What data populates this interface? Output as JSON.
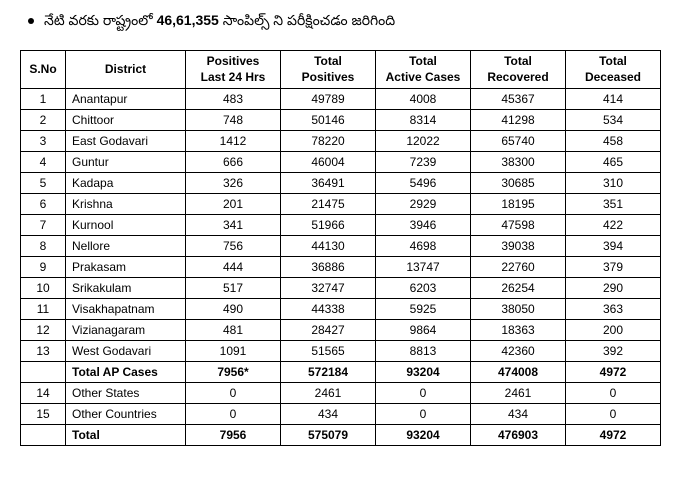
{
  "bullet": {
    "prefix": "నేటి వరకు రాష్ట్రంలో ",
    "value": "46,61,355",
    "suffix": "  సాంపిల్స్ ని పరీక్షించడం జరిగింది"
  },
  "columns": {
    "sno": "S.No",
    "district": "District",
    "pos24_l1": "Positives",
    "pos24_l2": "Last 24 Hrs",
    "totpos_l1": "Total",
    "totpos_l2": "Positives",
    "active_l1": "Total",
    "active_l2": "Active Cases",
    "rec_l1": "Total",
    "rec_l2": "Recovered",
    "dec_l1": "Total",
    "dec_l2": "Deceased"
  },
  "rows": [
    {
      "sno": "1",
      "district": "Anantapur",
      "p24": "483",
      "tp": "49789",
      "ac": "4008",
      "rc": "45367",
      "dc": "414"
    },
    {
      "sno": "2",
      "district": "Chittoor",
      "p24": "748",
      "tp": "50146",
      "ac": "8314",
      "rc": "41298",
      "dc": "534"
    },
    {
      "sno": "3",
      "district": "East Godavari",
      "p24": "1412",
      "tp": "78220",
      "ac": "12022",
      "rc": "65740",
      "dc": "458"
    },
    {
      "sno": "4",
      "district": "Guntur",
      "p24": "666",
      "tp": "46004",
      "ac": "7239",
      "rc": "38300",
      "dc": "465"
    },
    {
      "sno": "5",
      "district": "Kadapa",
      "p24": "326",
      "tp": "36491",
      "ac": "5496",
      "rc": "30685",
      "dc": "310"
    },
    {
      "sno": "6",
      "district": "Krishna",
      "p24": "201",
      "tp": "21475",
      "ac": "2929",
      "rc": "18195",
      "dc": "351"
    },
    {
      "sno": "7",
      "district": "Kurnool",
      "p24": "341",
      "tp": "51966",
      "ac": "3946",
      "rc": "47598",
      "dc": "422"
    },
    {
      "sno": "8",
      "district": "Nellore",
      "p24": "756",
      "tp": "44130",
      "ac": "4698",
      "rc": "39038",
      "dc": "394"
    },
    {
      "sno": "9",
      "district": "Prakasam",
      "p24": "444",
      "tp": "36886",
      "ac": "13747",
      "rc": "22760",
      "dc": "379"
    },
    {
      "sno": "10",
      "district": "Srikakulam",
      "p24": "517",
      "tp": "32747",
      "ac": "6203",
      "rc": "26254",
      "dc": "290"
    },
    {
      "sno": "11",
      "district": "Visakhapatnam",
      "p24": "490",
      "tp": "44338",
      "ac": "5925",
      "rc": "38050",
      "dc": "363"
    },
    {
      "sno": "12",
      "district": "Vizianagaram",
      "p24": "481",
      "tp": "28427",
      "ac": "9864",
      "rc": "18363",
      "dc": "200"
    },
    {
      "sno": "13",
      "district": "West Godavari",
      "p24": "1091",
      "tp": "51565",
      "ac": "8813",
      "rc": "42360",
      "dc": "392"
    }
  ],
  "ap_total": {
    "label": "Total AP Cases",
    "p24": "7956*",
    "tp": "572184",
    "ac": "93204",
    "rc": "474008",
    "dc": "4972"
  },
  "extras": [
    {
      "sno": "14",
      "district": "Other States",
      "p24": "0",
      "tp": "2461",
      "ac": "0",
      "rc": "2461",
      "dc": "0"
    },
    {
      "sno": "15",
      "district": "Other Countries",
      "p24": "0",
      "tp": "434",
      "ac": "0",
      "rc": "434",
      "dc": "0"
    }
  ],
  "grand_total": {
    "label": "Total",
    "p24": "7956",
    "tp": "575079",
    "ac": "93204",
    "rc": "476903",
    "dc": "4972"
  }
}
